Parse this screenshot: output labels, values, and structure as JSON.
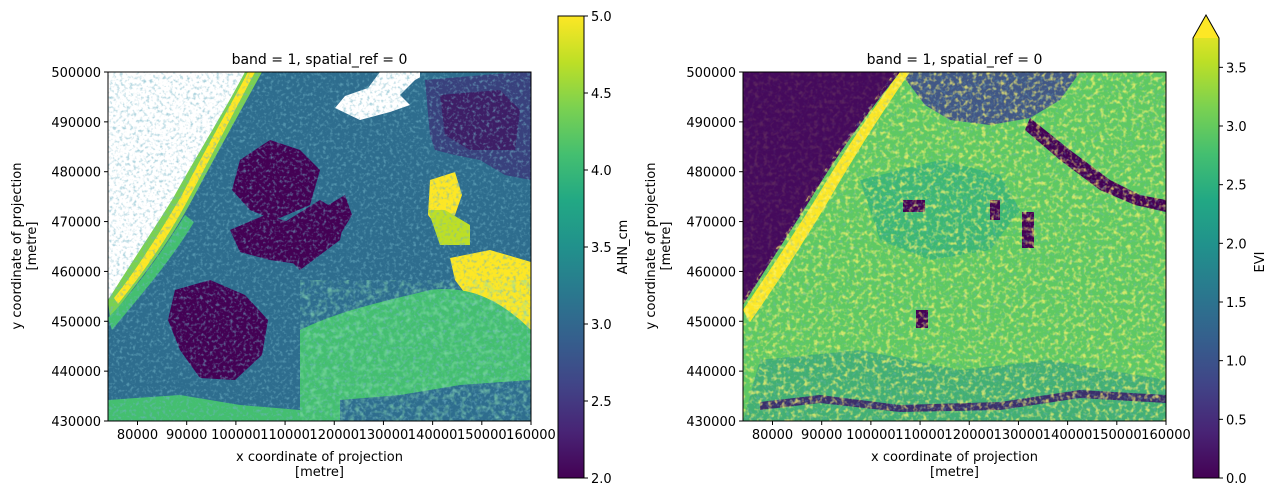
{
  "chart_data": [
    {
      "type": "heatmap",
      "title": "band = 1, spatial_ref = 0",
      "xlabel": "x coordinate of projection",
      "xlabel_unit": "[metre]",
      "ylabel": "y coordinate of projection",
      "ylabel_unit": "[metre]",
      "xlim": [
        74000,
        160000
      ],
      "ylim": [
        430000,
        500000
      ],
      "xticks": [
        80000,
        90000,
        100000,
        110000,
        120000,
        130000,
        140000,
        150000,
        160000
      ],
      "xtick_labels": [
        "80000",
        "90000",
        "100000",
        "110000",
        "120000",
        "130000",
        "140000",
        "150000",
        "160000"
      ],
      "yticks": [
        430000,
        440000,
        450000,
        460000,
        470000,
        480000,
        490000,
        500000
      ],
      "ytick_labels": [
        "430000",
        "440000",
        "450000",
        "460000",
        "470000",
        "480000",
        "490000",
        "500000"
      ],
      "colorbar": {
        "label": "AHN_cm",
        "colormap": "viridis",
        "range": [
          2.0,
          5.0
        ],
        "ticks": [
          2.0,
          2.5,
          3.0,
          3.5,
          4.0,
          4.5,
          5.0
        ],
        "tick_labels": [
          "2.0",
          "2.5",
          "3.0",
          "3.5",
          "4.0",
          "4.5",
          "5.0"
        ],
        "extend": "neither"
      },
      "grid": false
    },
    {
      "type": "heatmap",
      "title": "band = 1, spatial_ref = 0",
      "xlabel": "x coordinate of projection",
      "xlabel_unit": "[metre]",
      "ylabel": "y coordinate of projection",
      "ylabel_unit": "[metre]",
      "xlim": [
        74000,
        160000
      ],
      "ylim": [
        430000,
        500000
      ],
      "xticks": [
        80000,
        90000,
        100000,
        110000,
        120000,
        130000,
        140000,
        150000,
        160000
      ],
      "xtick_labels": [
        "80000",
        "90000",
        "100000",
        "110000",
        "120000",
        "130000",
        "140000",
        "150000",
        "160000"
      ],
      "yticks": [
        430000,
        440000,
        450000,
        460000,
        470000,
        480000,
        490000,
        500000
      ],
      "ytick_labels": [
        "430000",
        "440000",
        "450000",
        "460000",
        "470000",
        "480000",
        "490000",
        "500000"
      ],
      "colorbar": {
        "label": "EVI",
        "colormap": "viridis",
        "range": [
          0.0,
          3.75
        ],
        "ticks": [
          0.0,
          0.5,
          1.0,
          1.5,
          2.0,
          2.5,
          3.0,
          3.5
        ],
        "tick_labels": [
          "0.0",
          "0.5",
          "1.0",
          "1.5",
          "2.0",
          "2.5",
          "3.0",
          "3.5"
        ],
        "extend": "max"
      },
      "grid": false
    }
  ]
}
